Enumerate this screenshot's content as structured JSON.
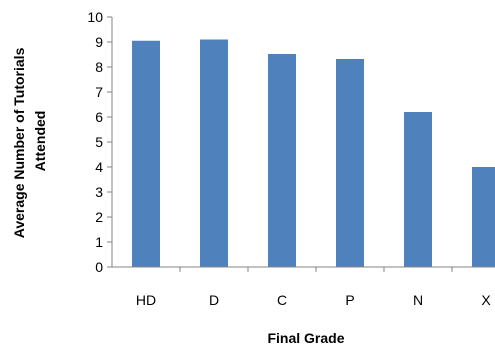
{
  "chart_data": {
    "type": "bar",
    "categories": [
      "HD",
      "D",
      "C",
      "P",
      "N",
      "X"
    ],
    "values": [
      9.05,
      9.1,
      8.52,
      8.32,
      6.2,
      4.0
    ],
    "title": "",
    "xlabel": "Final Grade",
    "ylabel_lines": [
      "Average Number of Tutorials",
      "Attended"
    ],
    "ylim": [
      0,
      10
    ],
    "yticks": [
      0,
      1,
      2,
      3,
      4,
      5,
      6,
      7,
      8,
      9,
      10
    ],
    "grid": false,
    "legend": "none",
    "bar_color": "#4F81BD",
    "axis_color": "#868686"
  }
}
